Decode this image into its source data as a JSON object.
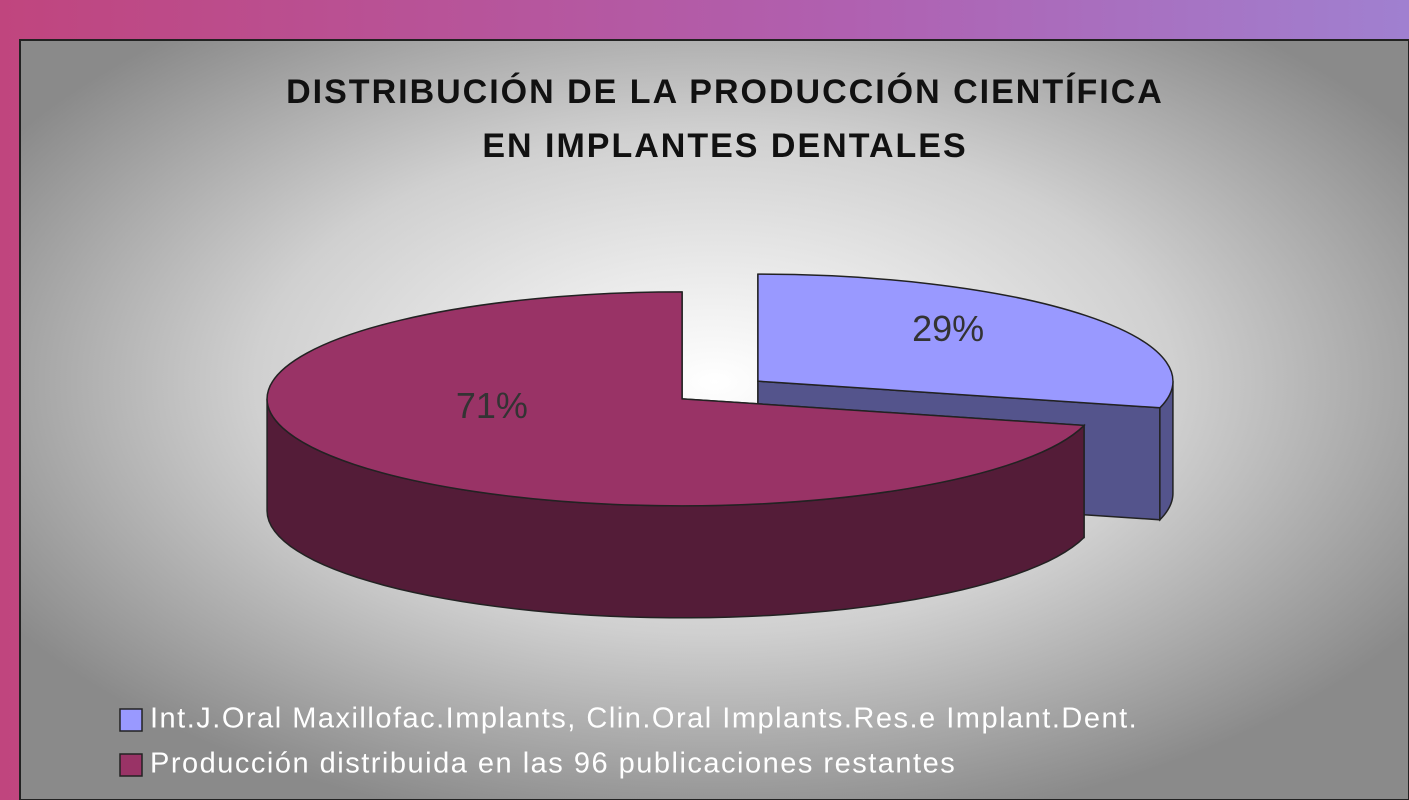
{
  "chart_data": {
    "type": "pie",
    "title": [
      "DISTRIBUCIÓN DE LA PRODUCCIÓN CIENTÍFICA",
      "EN IMPLANTES DENTALES"
    ],
    "categories": [
      "Int.J.Oral Maxillofac.Implants, Clin.Oral Implants.Res.e Implant.Dent.",
      "Producción distribuida en las 96 publicaciones restantes"
    ],
    "values": [
      29,
      71
    ],
    "value_labels": [
      "29%",
      "71%"
    ],
    "colors": [
      "#9999ff",
      "#993366"
    ],
    "legend": "bottom-left"
  }
}
